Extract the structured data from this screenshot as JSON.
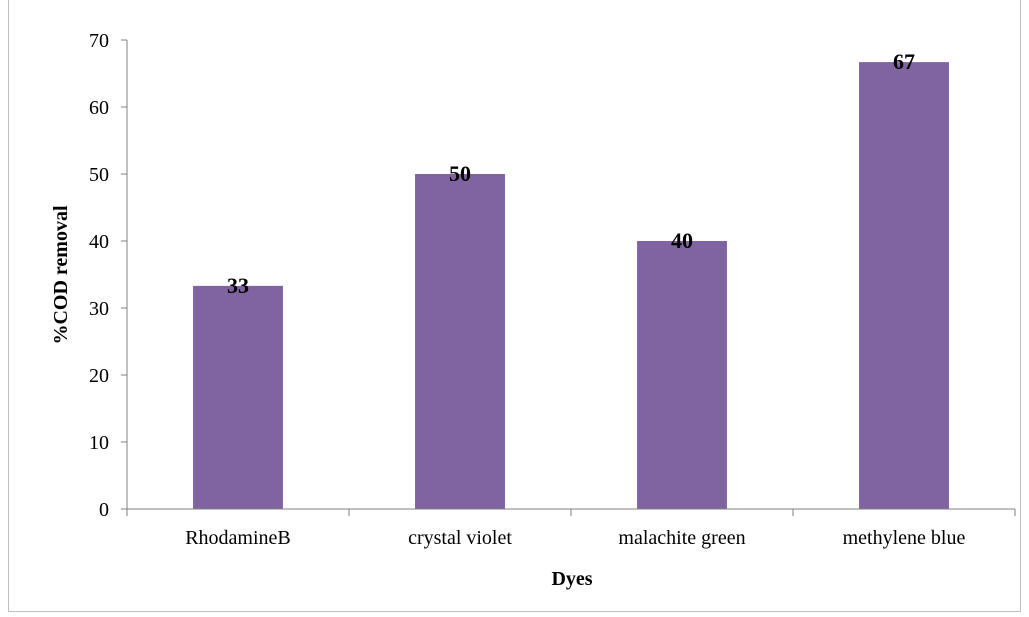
{
  "chart_data": {
    "type": "bar",
    "categories": [
      "RhodamineB",
      "crystal violet",
      "malachite green",
      "methylene blue"
    ],
    "values": [
      33.3,
      50,
      40,
      66.7
    ],
    "data_labels": [
      "33",
      "50",
      "40",
      "67"
    ],
    "title": "",
    "xlabel": "Dyes",
    "ylabel": "%COD removal",
    "ylim": [
      0,
      70
    ],
    "yticks": [
      0,
      10,
      20,
      30,
      40,
      50,
      60,
      70
    ],
    "grid": false,
    "bar_color": "#8064a2"
  }
}
